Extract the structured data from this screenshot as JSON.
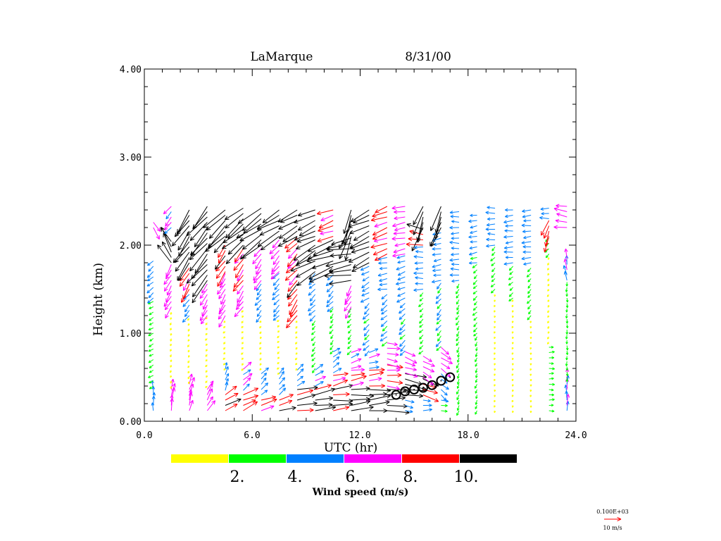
{
  "chart_data": {
    "type": "wind-profile-vectors",
    "title": "LaMarque",
    "date": "8/31/00",
    "xlabel": "UTC (hr)",
    "ylabel": "Height (km)",
    "xlim": [
      0,
      24
    ],
    "ylim": [
      0,
      4
    ],
    "x_ticks": [
      "0.0",
      "6.0",
      "12.0",
      "18.0",
      "24.0"
    ],
    "y_ticks": [
      "0.00",
      "1.00",
      "2.00",
      "3.00",
      "4.00"
    ],
    "gate_spacing_km": 0.06,
    "segment_format": "[height_start_km, height_end_km, speed_m_s, direction_toward_deg]",
    "profiles": [
      {
        "t": 0.5,
        "segments": [
          [
            0.12,
            0.4,
            5,
            0
          ],
          [
            0.4,
            1.4,
            3,
            240
          ],
          [
            1.4,
            1.85,
            4.5,
            230
          ],
          [
            2.2,
            2.3,
            7,
            150
          ]
        ]
      },
      {
        "t": 1.5,
        "segments": [
          [
            0.12,
            0.4,
            7,
            10
          ],
          [
            0.4,
            1.3,
            1.5,
            200
          ],
          [
            1.3,
            1.8,
            7,
            210
          ],
          [
            1.8,
            2.1,
            12,
            330
          ],
          [
            2.2,
            2.45,
            6,
            220
          ]
        ]
      },
      {
        "t": 2.5,
        "segments": [
          [
            0.12,
            0.45,
            7,
            15
          ],
          [
            0.45,
            1.2,
            1.5,
            210
          ],
          [
            1.2,
            1.5,
            5,
            220
          ],
          [
            1.5,
            1.8,
            9,
            210
          ],
          [
            1.8,
            2.45,
            14,
            215
          ]
        ]
      },
      {
        "t": 3.5,
        "segments": [
          [
            0.12,
            0.4,
            7,
            30
          ],
          [
            0.4,
            1.2,
            1.5,
            220
          ],
          [
            1.2,
            1.6,
            7,
            210
          ],
          [
            1.6,
            2.45,
            15,
            220
          ]
        ]
      },
      {
        "t": 4.5,
        "segments": [
          [
            0.12,
            0.35,
            9,
            60
          ],
          [
            0.35,
            0.6,
            4.5,
            20
          ],
          [
            0.6,
            1.2,
            1.5,
            225
          ],
          [
            1.2,
            1.7,
            7,
            210
          ],
          [
            1.7,
            2.1,
            9,
            215
          ],
          [
            2.1,
            2.45,
            15,
            225
          ]
        ]
      },
      {
        "t": 5.5,
        "segments": [
          [
            0.12,
            0.35,
            9,
            65
          ],
          [
            0.35,
            0.6,
            6,
            50
          ],
          [
            0.6,
            1.3,
            1.5,
            220
          ],
          [
            1.3,
            1.6,
            7,
            215
          ],
          [
            1.6,
            2.0,
            8.5,
            215
          ],
          [
            2.0,
            2.45,
            14,
            230
          ]
        ]
      },
      {
        "t": 6.5,
        "segments": [
          [
            0.12,
            0.3,
            9,
            75
          ],
          [
            0.3,
            0.6,
            5,
            45
          ],
          [
            0.6,
            1.2,
            1.5,
            215
          ],
          [
            1.2,
            1.6,
            4.5,
            220
          ],
          [
            1.6,
            2.0,
            7,
            215
          ],
          [
            2.0,
            2.45,
            15,
            235
          ]
        ]
      },
      {
        "t": 7.5,
        "segments": [
          [
            0.12,
            0.3,
            9,
            75
          ],
          [
            0.3,
            0.55,
            5,
            40
          ],
          [
            0.55,
            1.2,
            1.5,
            225
          ],
          [
            1.2,
            1.7,
            5,
            225
          ],
          [
            1.7,
            2.1,
            7,
            220
          ],
          [
            2.1,
            2.45,
            14,
            240
          ]
        ]
      },
      {
        "t": 8.5,
        "segments": [
          [
            0.12,
            0.4,
            11,
            80
          ],
          [
            0.4,
            0.6,
            5,
            50
          ],
          [
            0.6,
            1.2,
            1.5,
            220
          ],
          [
            1.2,
            1.6,
            9,
            215
          ],
          [
            1.6,
            2.1,
            8.5,
            225
          ],
          [
            2.1,
            2.45,
            12,
            240
          ]
        ]
      },
      {
        "t": 9.5,
        "segments": [
          [
            0.12,
            0.4,
            11,
            80
          ],
          [
            0.4,
            0.6,
            6,
            60
          ],
          [
            0.6,
            1.2,
            3,
            220
          ],
          [
            1.2,
            1.7,
            5,
            225
          ],
          [
            1.7,
            2.1,
            14,
            240
          ],
          [
            2.1,
            2.45,
            12,
            245
          ]
        ]
      },
      {
        "t": 10.5,
        "segments": [
          [
            0.12,
            0.4,
            11,
            85
          ],
          [
            0.4,
            0.55,
            8.5,
            75
          ],
          [
            0.55,
            0.8,
            5,
            55
          ],
          [
            0.8,
            1.3,
            3,
            215
          ],
          [
            1.3,
            1.7,
            5,
            225
          ],
          [
            1.7,
            2.1,
            15,
            250
          ],
          [
            2.1,
            2.45,
            9,
            250
          ]
        ]
      },
      {
        "t": 11.5,
        "segments": [
          [
            0.12,
            0.4,
            12,
            85
          ],
          [
            0.4,
            0.6,
            8.5,
            80
          ],
          [
            0.6,
            0.8,
            6,
            70
          ],
          [
            0.8,
            1.3,
            3,
            220
          ],
          [
            1.3,
            1.6,
            7,
            210
          ],
          [
            1.6,
            2.1,
            14,
            260
          ],
          [
            2.1,
            2.45,
            16,
            200
          ]
        ]
      },
      {
        "t": 12.5,
        "segments": [
          [
            0.12,
            0.4,
            12,
            85
          ],
          [
            0.4,
            0.6,
            8.5,
            85
          ],
          [
            0.6,
            0.8,
            6,
            75
          ],
          [
            0.8,
            1.4,
            4.5,
            225
          ],
          [
            1.4,
            1.8,
            5,
            240
          ],
          [
            1.8,
            2.45,
            12,
            245
          ]
        ]
      },
      {
        "t": 13.5,
        "segments": [
          [
            0.12,
            0.4,
            12,
            88
          ],
          [
            0.4,
            0.65,
            8.5,
            95
          ],
          [
            0.65,
            0.9,
            7,
            100
          ],
          [
            0.9,
            1.5,
            4.5,
            230
          ],
          [
            1.5,
            1.9,
            5,
            260
          ],
          [
            1.9,
            2.45,
            9,
            250
          ]
        ]
      },
      {
        "t": 14.5,
        "segments": [
          [
            0.12,
            0.3,
            5,
            100
          ],
          [
            0.3,
            0.55,
            12,
            100
          ],
          [
            0.55,
            0.8,
            7,
            110
          ],
          [
            0.8,
            1.4,
            4.5,
            225
          ],
          [
            1.4,
            1.9,
            5,
            250
          ],
          [
            1.9,
            2.45,
            7,
            260
          ]
        ]
      },
      {
        "t": 15.5,
        "segments": [
          [
            0.12,
            0.3,
            5,
            90
          ],
          [
            0.3,
            0.5,
            9,
            110
          ],
          [
            0.5,
            0.8,
            7,
            120
          ],
          [
            0.8,
            1.5,
            3,
            225
          ],
          [
            1.5,
            2.0,
            5,
            270
          ],
          [
            2.0,
            2.2,
            9,
            280
          ],
          [
            2.2,
            2.45,
            14,
            200
          ]
        ]
      },
      {
        "t": 16.5,
        "segments": [
          [
            0.12,
            0.3,
            4,
            100
          ],
          [
            0.3,
            0.6,
            5,
            130
          ],
          [
            0.6,
            0.85,
            7,
            125
          ],
          [
            0.85,
            1.6,
            4,
            220
          ],
          [
            1.6,
            2.2,
            5,
            260
          ],
          [
            2.2,
            2.45,
            14,
            200
          ]
        ]
      },
      {
        "t": 17.5,
        "segments": [
          [
            0.12,
            0.9,
            3,
            200
          ],
          [
            0.9,
            1.6,
            3,
            210
          ],
          [
            1.6,
            2.4,
            5,
            270
          ]
        ]
      },
      {
        "t": 18.5,
        "segments": [
          [
            0.12,
            1.0,
            2.5,
            200
          ],
          [
            1.0,
            1.8,
            3,
            225
          ],
          [
            1.8,
            2.4,
            4.5,
            260
          ]
        ]
      },
      {
        "t": 19.5,
        "segments": [
          [
            0.12,
            1.5,
            1,
            200
          ],
          [
            1.5,
            2.0,
            3,
            225
          ],
          [
            2.0,
            2.45,
            5,
            270
          ]
        ]
      },
      {
        "t": 20.5,
        "segments": [
          [
            0.12,
            1.4,
            1,
            200
          ],
          [
            1.4,
            1.8,
            3,
            230
          ],
          [
            1.8,
            2.45,
            5,
            265
          ]
        ]
      },
      {
        "t": 21.5,
        "segments": [
          [
            0.12,
            1.2,
            1,
            190
          ],
          [
            1.2,
            1.8,
            3,
            220
          ],
          [
            1.8,
            2.45,
            5,
            265
          ]
        ]
      },
      {
        "t": 22.5,
        "segments": [
          [
            0.12,
            0.9,
            3,
            90
          ],
          [
            0.9,
            1.9,
            1.5,
            210
          ],
          [
            1.9,
            2.1,
            3,
            225
          ],
          [
            2.1,
            2.3,
            9,
            200
          ],
          [
            2.3,
            2.45,
            5,
            270
          ]
        ]
      },
      {
        "t": 23.5,
        "segments": [
          [
            0.12,
            0.5,
            6,
            0
          ],
          [
            0.5,
            1.6,
            2.5,
            180
          ],
          [
            1.6,
            1.9,
            6,
            350
          ],
          [
            2.2,
            2.45,
            7,
            280
          ]
        ]
      }
    ],
    "boundary_layer_markers": [
      {
        "t": 14.0,
        "h": 0.3
      },
      {
        "t": 14.5,
        "h": 0.34
      },
      {
        "t": 15.0,
        "h": 0.36
      },
      {
        "t": 15.5,
        "h": 0.38
      },
      {
        "t": 16.0,
        "h": 0.41
      },
      {
        "t": 16.5,
        "h": 0.46
      },
      {
        "t": 17.0,
        "h": 0.5
      }
    ],
    "legend": {
      "title": "Wind speed (m/s)",
      "thresholds": [
        2,
        4,
        6,
        8,
        10
      ],
      "labels": [
        "2.",
        "4.",
        "6.",
        "8.",
        "10."
      ],
      "colors": [
        "#ffff00",
        "#00ff00",
        "#0080ff",
        "#ff00ff",
        "#ff0000",
        "#000000"
      ]
    },
    "reference_vector": {
      "scale_text": "0.100E+03",
      "label": "10 m/s",
      "speed": 10,
      "color": "#ff0000"
    }
  }
}
